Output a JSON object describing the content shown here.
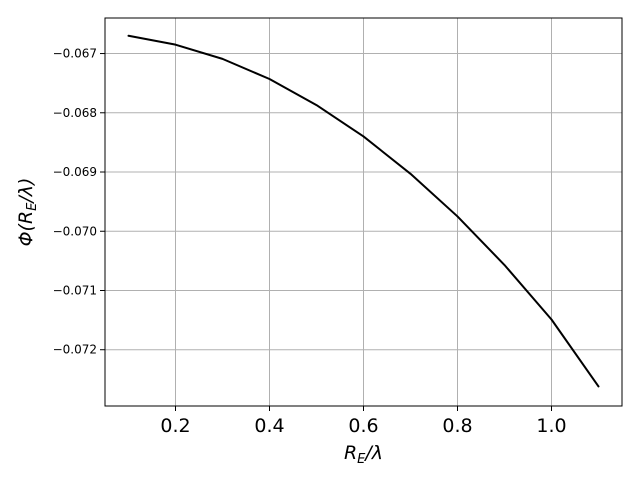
{
  "chart_data": {
    "type": "line",
    "title": "",
    "xlabel_main": "R",
    "xlabel_sub": "E",
    "xlabel_rest": "/λ",
    "ylabel_prefix": "Φ(R",
    "ylabel_sub": "E",
    "ylabel_suffix": "/λ)",
    "xlim": [
      0.05,
      1.15
    ],
    "ylim": [
      -0.07295,
      -0.0664
    ],
    "grid": true,
    "x_ticks": [
      0.2,
      0.4,
      0.6,
      0.8,
      1.0
    ],
    "x_tick_labels": [
      "0.2",
      "0.4",
      "0.6",
      "0.8",
      "1.0"
    ],
    "y_ticks": [
      -0.067,
      -0.068,
      -0.069,
      -0.07,
      -0.071,
      -0.072
    ],
    "y_tick_labels": [
      "−0.067",
      "−0.068",
      "−0.069",
      "−0.070",
      "−0.071",
      "−0.072"
    ],
    "line_color": "#000000",
    "grid_color": "#b0b0b0",
    "series": [
      {
        "x": [
          0.1,
          0.2,
          0.3,
          0.4,
          0.5,
          0.6,
          0.7,
          0.8,
          0.9,
          1.0,
          1.1
        ],
        "y": [
          -0.0667,
          -0.06685,
          -0.06709,
          -0.06743,
          -0.06787,
          -0.0684,
          -0.06903,
          -0.06975,
          -0.07057,
          -0.07149,
          -0.07262
        ]
      }
    ]
  }
}
